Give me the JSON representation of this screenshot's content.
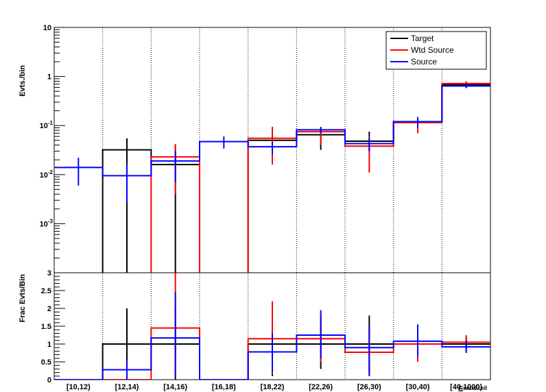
{
  "chart_data": [
    {
      "type": "step-histogram",
      "yscale": "log",
      "ylabel": "Evts./bin",
      "ylim": [
        0.0001,
        10
      ],
      "yticks": [
        {
          "value": 10,
          "base": "10",
          "exp": ""
        },
        {
          "value": 1,
          "base": "1",
          "exp": ""
        },
        {
          "value": 0.1,
          "base": "10",
          "exp": "-1"
        },
        {
          "value": 0.01,
          "base": "10",
          "exp": "-2"
        },
        {
          "value": 0.001,
          "base": "10",
          "exp": "-3"
        }
      ],
      "categories": [
        "[10,12)",
        "[12,14)",
        "[14,16)",
        "[16,18)",
        "[18,22)",
        "[22,26)",
        "[26,30)",
        "[30,40)",
        "[40,1000)"
      ],
      "grid": {
        "x": "dotted",
        "y": false
      },
      "legend": {
        "placement": "top-right",
        "entries": [
          {
            "name": "Target",
            "color": "#000000"
          },
          {
            "name": "Wtd Source",
            "color": "#ff0000"
          },
          {
            "name": "Source",
            "color": "#0000ff"
          }
        ]
      },
      "series": [
        {
          "name": "Target",
          "color": "#000000",
          "values": [
            0,
            0.032,
            0.016,
            0,
            0.05,
            0.065,
            0.048,
            0.12,
            0.68
          ],
          "err_low": [
            0,
            0.0001,
            0.0001,
            0,
            0.03,
            0.032,
            0.03,
            0.08,
            0.58
          ],
          "err_high": [
            0,
            0.055,
            0.038,
            0,
            0.075,
            0.09,
            0.075,
            0.15,
            0.78
          ]
        },
        {
          "name": "Wtd Source",
          "color": "#ff0000",
          "values": [
            0,
            0,
            0.023,
            0,
            0.055,
            0.075,
            0.038,
            0.115,
            0.72
          ],
          "err_low": [
            0,
            0,
            0.004,
            0,
            0.016,
            0.04,
            0.011,
            0.07,
            0.6
          ],
          "err_high": [
            0,
            0,
            0.042,
            0,
            0.094,
            0.09,
            0.06,
            0.15,
            0.8
          ]
        },
        {
          "name": "Source",
          "color": "#0000ff",
          "values": [
            0.014,
            0.0095,
            0.019,
            0.047,
            0.037,
            0.082,
            0.043,
            0.12,
            0.64
          ],
          "err_low": [
            0.006,
            0.0027,
            0.007,
            0.034,
            0.026,
            0.07,
            0.03,
            0.09,
            0.58
          ],
          "err_high": [
            0.022,
            0.016,
            0.03,
            0.06,
            0.046,
            0.094,
            0.056,
            0.15,
            0.72
          ]
        }
      ]
    },
    {
      "type": "step-histogram",
      "yscale": "linear",
      "ylabel": "Frac Evts/Bin",
      "xlabel_sub": "maxEcell",
      "xlabel_main": "E",
      "ylim": [
        0,
        3
      ],
      "yticks": [
        "0",
        "0.5",
        "1",
        "1.5",
        "2",
        "2.5",
        "3"
      ],
      "categories": [
        "[10,12)",
        "[12,14)",
        "[14,16)",
        "[16,18)",
        "[18,22)",
        "[22,26)",
        "[26,30)",
        "[30,40)",
        "[40,1000)"
      ],
      "grid": {
        "x": "dotted",
        "y": false
      },
      "series": [
        {
          "name": "Target",
          "color": "#000000",
          "values": [
            0,
            1,
            1,
            0,
            1,
            1,
            1,
            1,
            1
          ],
          "err_low": [
            0,
            0,
            0,
            0,
            0.1,
            0.3,
            0.2,
            0.5,
            0.8
          ],
          "err_high": [
            0,
            2.0,
            2.0,
            0,
            1.9,
            1.7,
            1.8,
            1.5,
            1.2
          ]
        },
        {
          "name": "Wtd Source",
          "color": "#ff0000",
          "values": [
            0,
            0,
            1.45,
            0,
            1.15,
            1.15,
            0.77,
            1.0,
            1.05
          ],
          "err_low": [
            0,
            0,
            0.4,
            0,
            0.15,
            0.5,
            0.1,
            0.5,
            0.85
          ],
          "err_high": [
            0,
            0,
            3.0,
            0,
            2.2,
            1.8,
            1.5,
            1.5,
            1.25
          ]
        },
        {
          "name": "Source",
          "color": "#0000ff",
          "values": [
            0,
            0.28,
            1.17,
            0,
            0.78,
            1.25,
            0.9,
            1.08,
            0.92
          ],
          "err_low": [
            0,
            0,
            0.1,
            0,
            0.2,
            0.6,
            0.1,
            0.65,
            0.75
          ],
          "err_high": [
            0,
            0.55,
            2.45,
            0,
            1.3,
            1.95,
            1.5,
            1.55,
            1.1
          ]
        }
      ]
    }
  ]
}
